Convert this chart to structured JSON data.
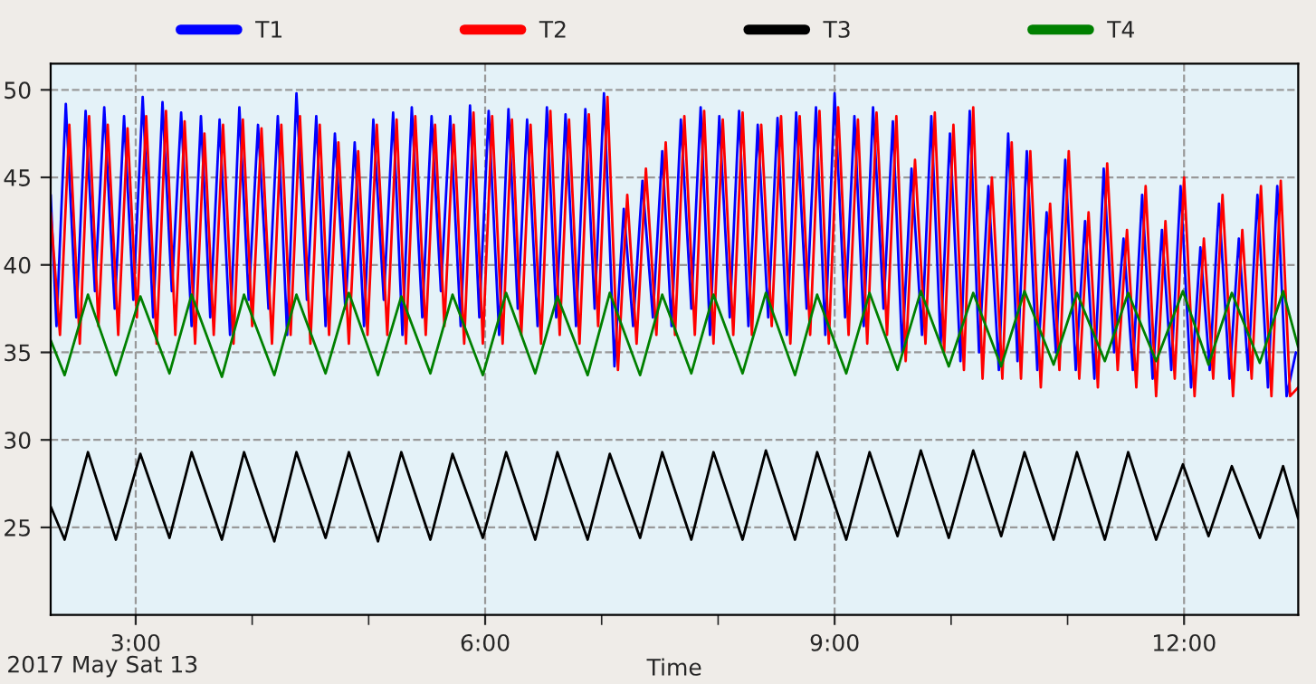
{
  "chart_data": {
    "type": "line",
    "xlabel": "Time",
    "annotations": [
      "2017 May Sat 13"
    ],
    "xlim": [
      2.27,
      12.98
    ],
    "ylim": [
      20,
      51.5
    ],
    "xticks": [
      {
        "value": 3,
        "label": "3:00"
      },
      {
        "value": 4,
        "label": null
      },
      {
        "value": 5,
        "label": null
      },
      {
        "value": 6,
        "label": "6:00"
      },
      {
        "value": 7,
        "label": null
      },
      {
        "value": 8,
        "label": null
      },
      {
        "value": 9,
        "label": "9:00"
      },
      {
        "value": 10,
        "label": null
      },
      {
        "value": 11,
        "label": null
      },
      {
        "value": 12,
        "label": "12:00"
      }
    ],
    "yticks": [
      25,
      30,
      35,
      40,
      45,
      50
    ],
    "grid": true,
    "legend": "top",
    "line_style": "solid",
    "series": [
      {
        "name": "T1",
        "color": "#0000ff",
        "x": [
          2.27,
          2.32,
          2.4,
          2.49,
          2.57,
          2.65,
          2.73,
          2.82,
          2.9,
          2.98,
          3.06,
          3.15,
          3.23,
          3.31,
          3.39,
          3.48,
          3.56,
          3.64,
          3.72,
          3.81,
          3.89,
          3.97,
          4.05,
          4.14,
          4.22,
          4.3,
          4.38,
          4.47,
          4.55,
          4.63,
          4.71,
          4.8,
          4.88,
          4.96,
          5.04,
          5.13,
          5.21,
          5.29,
          5.37,
          5.46,
          5.54,
          5.62,
          5.7,
          5.79,
          5.87,
          5.95,
          6.03,
          6.12,
          6.2,
          6.28,
          6.36,
          6.45,
          6.53,
          6.61,
          6.69,
          6.78,
          6.86,
          6.94,
          7.02,
          7.11,
          7.19,
          7.27,
          7.35,
          7.44,
          7.52,
          7.6,
          7.68,
          7.77,
          7.85,
          7.93,
          8.01,
          8.1,
          8.18,
          8.26,
          8.34,
          8.43,
          8.51,
          8.59,
          8.67,
          8.76,
          8.84,
          8.92,
          9.0,
          9.09,
          9.17,
          9.25,
          9.33,
          9.42,
          9.5,
          9.58,
          9.66,
          9.75,
          9.83,
          9.91,
          9.99,
          10.08,
          10.16,
          10.24,
          10.32,
          10.41,
          10.49,
          10.57,
          10.65,
          10.74,
          10.82,
          10.9,
          10.98,
          11.07,
          11.15,
          11.23,
          11.31,
          11.4,
          11.48,
          11.56,
          11.64,
          11.73,
          11.81,
          11.89,
          11.97,
          12.06,
          12.14,
          12.22,
          12.3,
          12.39,
          12.47,
          12.55,
          12.63,
          12.72,
          12.8,
          12.88,
          12.96
        ],
        "values": [
          44,
          36.5,
          49.2,
          37,
          48.8,
          38.5,
          49.0,
          37.5,
          48.5,
          38,
          49.6,
          37,
          49.3,
          38.5,
          48.7,
          36.5,
          48.5,
          37,
          48.3,
          36,
          49.0,
          38,
          48.0,
          37.5,
          48.5,
          36,
          49.8,
          38,
          48.5,
          36.5,
          47.5,
          37.5,
          47.0,
          36.5,
          48.3,
          38,
          48.7,
          36,
          49.0,
          37,
          48.5,
          38.5,
          48.5,
          36.5,
          49.1,
          37,
          48.8,
          36,
          48.9,
          37.5,
          48.3,
          36.5,
          49.0,
          37,
          48.6,
          36.5,
          48.9,
          37.5,
          49.8,
          34.2,
          43.2,
          36.5,
          44.8,
          37,
          46.5,
          36.5,
          48.3,
          37.5,
          49.0,
          36,
          48.5,
          37,
          48.8,
          36.5,
          48.0,
          37,
          48.4,
          36,
          48.7,
          37.5,
          49.0,
          36,
          49.8,
          37,
          48.5,
          36.5,
          49.0,
          37.5,
          48.2,
          35,
          45.5,
          36,
          48.5,
          35.5,
          47.5,
          34.5,
          48.8,
          35,
          44.5,
          34,
          47.5,
          34.5,
          46.5,
          34,
          43.0,
          35,
          46.0,
          34,
          42.5,
          33.5,
          45.5,
          35,
          41.5,
          34,
          44.0,
          33.5,
          42.0,
          34,
          44.5,
          33,
          41.0,
          34,
          43.5,
          33.5,
          41.5,
          34,
          44.0,
          33,
          44.5,
          32.5,
          35
        ]
      },
      {
        "name": "T2",
        "color": "#ff0000",
        "x": [
          2.27,
          2.35,
          2.43,
          2.52,
          2.6,
          2.68,
          2.76,
          2.85,
          2.93,
          3.01,
          3.09,
          3.18,
          3.26,
          3.34,
          3.42,
          3.51,
          3.59,
          3.67,
          3.75,
          3.84,
          3.92,
          4.0,
          4.08,
          4.17,
          4.25,
          4.33,
          4.41,
          4.5,
          4.58,
          4.66,
          4.74,
          4.83,
          4.91,
          4.99,
          5.07,
          5.16,
          5.24,
          5.32,
          5.4,
          5.49,
          5.57,
          5.65,
          5.73,
          5.82,
          5.9,
          5.98,
          6.06,
          6.15,
          6.23,
          6.31,
          6.39,
          6.48,
          6.56,
          6.64,
          6.72,
          6.81,
          6.89,
          6.97,
          7.05,
          7.14,
          7.22,
          7.3,
          7.38,
          7.47,
          7.55,
          7.63,
          7.71,
          7.8,
          7.88,
          7.96,
          8.04,
          8.13,
          8.21,
          8.29,
          8.37,
          8.46,
          8.54,
          8.62,
          8.7,
          8.79,
          8.87,
          8.95,
          9.03,
          9.12,
          9.2,
          9.28,
          9.36,
          9.45,
          9.53,
          9.61,
          9.69,
          9.78,
          9.86,
          9.94,
          10.02,
          10.11,
          10.19,
          10.27,
          10.35,
          10.44,
          10.52,
          10.6,
          10.68,
          10.77,
          10.85,
          10.93,
          11.01,
          11.1,
          11.18,
          11.26,
          11.34,
          11.43,
          11.51,
          11.59,
          11.67,
          11.76,
          11.84,
          11.92,
          12.0,
          12.09,
          12.17,
          12.25,
          12.33,
          12.42,
          12.5,
          12.58,
          12.66,
          12.75,
          12.83,
          12.91,
          12.98
        ],
        "values": [
          43,
          36,
          48.0,
          35.5,
          48.5,
          36.5,
          48.0,
          36,
          47.8,
          37,
          48.5,
          35.5,
          48.8,
          36,
          48.2,
          35.5,
          47.5,
          36,
          48.0,
          35.5,
          48.3,
          36.5,
          47.8,
          35.5,
          48.0,
          36,
          48.5,
          35.5,
          48.0,
          36,
          47.0,
          35.5,
          46.5,
          36,
          48.0,
          36,
          48.3,
          35.5,
          48.5,
          36,
          48.0,
          36.5,
          48.0,
          35.5,
          48.7,
          35.5,
          48.5,
          35.5,
          48.3,
          36,
          48.0,
          35.5,
          48.8,
          36,
          48.3,
          35.5,
          48.6,
          36.5,
          49.6,
          34,
          44.0,
          35.5,
          45.5,
          36,
          47.0,
          36,
          48.5,
          36,
          48.8,
          35.5,
          48.3,
          36,
          48.7,
          36,
          48.0,
          36.5,
          48.5,
          35.5,
          48.5,
          36,
          48.8,
          35.5,
          49.0,
          36,
          48.3,
          35.5,
          48.7,
          36,
          48.5,
          34.5,
          46.0,
          35.5,
          48.7,
          35,
          48.0,
          34,
          49.0,
          33.5,
          45.0,
          33.5,
          47.0,
          33.5,
          46.5,
          33,
          43.5,
          34,
          46.5,
          33.5,
          43.0,
          33,
          45.8,
          34,
          42.0,
          33,
          44.5,
          32.5,
          42.5,
          33.5,
          45.0,
          32.5,
          41.5,
          33.5,
          44.0,
          32.5,
          42.0,
          33.5,
          44.5,
          32.5,
          44.8,
          32.5,
          33
        ]
      },
      {
        "name": "T3",
        "color": "#000000",
        "x": [
          2.27,
          2.39,
          2.59,
          2.83,
          3.04,
          3.29,
          3.48,
          3.74,
          3.93,
          4.19,
          4.38,
          4.63,
          4.83,
          5.08,
          5.28,
          5.53,
          5.72,
          5.98,
          6.18,
          6.43,
          6.62,
          6.88,
          7.07,
          7.33,
          7.52,
          7.77,
          7.96,
          8.21,
          8.41,
          8.66,
          8.85,
          9.1,
          9.3,
          9.54,
          9.74,
          9.98,
          10.19,
          10.43,
          10.63,
          10.88,
          11.08,
          11.32,
          11.52,
          11.76,
          11.99,
          12.21,
          12.41,
          12.65,
          12.85,
          12.98
        ],
        "values": [
          26.2,
          24.3,
          29.3,
          24.3,
          29.2,
          24.4,
          29.3,
          24.3,
          29.3,
          24.2,
          29.3,
          24.4,
          29.3,
          24.2,
          29.3,
          24.3,
          29.2,
          24.4,
          29.3,
          24.3,
          29.3,
          24.3,
          29.2,
          24.4,
          29.3,
          24.3,
          29.3,
          24.3,
          29.4,
          24.3,
          29.3,
          24.3,
          29.3,
          24.5,
          29.4,
          24.4,
          29.4,
          24.5,
          29.3,
          24.3,
          29.3,
          24.3,
          29.3,
          24.3,
          28.6,
          24.5,
          28.5,
          24.4,
          28.5,
          25.5
        ]
      },
      {
        "name": "T4",
        "color": "#008000",
        "x": [
          2.27,
          2.39,
          2.59,
          2.83,
          3.04,
          3.29,
          3.48,
          3.74,
          3.93,
          4.19,
          4.38,
          4.63,
          4.83,
          5.08,
          5.28,
          5.53,
          5.72,
          5.98,
          6.18,
          6.43,
          6.62,
          6.88,
          7.07,
          7.33,
          7.52,
          7.77,
          7.96,
          8.21,
          8.41,
          8.66,
          8.85,
          9.1,
          9.3,
          9.54,
          9.74,
          9.98,
          10.19,
          10.43,
          10.63,
          10.88,
          11.08,
          11.32,
          11.52,
          11.76,
          11.99,
          12.21,
          12.41,
          12.65,
          12.85,
          12.98
        ],
        "values": [
          35.7,
          33.7,
          38.3,
          33.7,
          38.2,
          33.8,
          38.3,
          33.6,
          38.3,
          33.7,
          38.3,
          33.8,
          38.4,
          33.7,
          38.2,
          33.8,
          38.3,
          33.7,
          38.4,
          33.8,
          38.2,
          33.7,
          38.4,
          33.7,
          38.3,
          33.8,
          38.3,
          33.8,
          38.4,
          33.7,
          38.3,
          33.8,
          38.4,
          34.0,
          38.5,
          34.2,
          38.4,
          34.2,
          38.5,
          34.3,
          38.4,
          34.5,
          38.4,
          34.5,
          38.5,
          34.3,
          38.4,
          34.4,
          38.5,
          35.3
        ]
      }
    ]
  }
}
